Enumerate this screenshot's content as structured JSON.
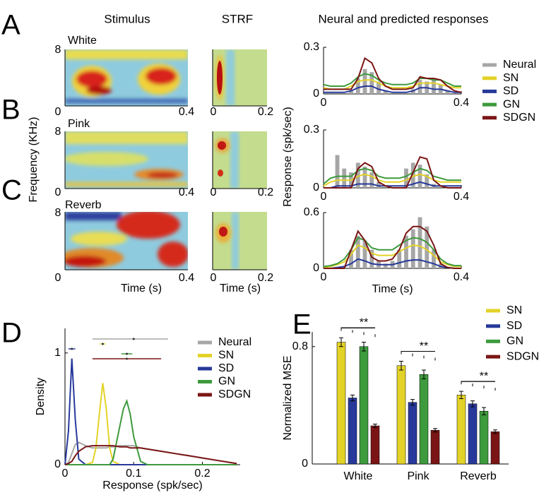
{
  "figure": {
    "panel_labels": [
      "A",
      "B",
      "C",
      "D",
      "E"
    ],
    "column_titles": [
      "Stimulus",
      "STRF",
      "Neural and predicted responses"
    ],
    "conditions": [
      "White",
      "Pink",
      "Reverb"
    ],
    "frequency_label": "Frequency (KHz)",
    "time_label": "Time (s)",
    "stimulus_yticks": [
      0,
      8
    ],
    "stimulus_xticks": [
      0,
      0.4
    ],
    "strf_xticks": [
      0,
      0.2
    ]
  },
  "chart_data": [
    {
      "type": "line",
      "xlim": [
        0,
        0.4
      ],
      "xticks": [
        0,
        0.4
      ],
      "ylim": [
        0,
        0.3
      ],
      "yticks": [
        0,
        0.3
      ],
      "legend": "right",
      "x": [
        0,
        0.02,
        0.04,
        0.06,
        0.08,
        0.1,
        0.12,
        0.14,
        0.16,
        0.18,
        0.2,
        0.22,
        0.24,
        0.26,
        0.28,
        0.3,
        0.32,
        0.34,
        0.36,
        0.38,
        0.4
      ],
      "series": [
        {
          "name": "Neural",
          "color": "#a6a6a6",
          "style": "bar",
          "values": [
            0,
            0,
            0,
            0,
            0.02,
            0.1,
            0.16,
            0.14,
            0.08,
            0.02,
            0,
            0,
            0,
            0.03,
            0.09,
            0.08,
            0.09,
            0.06,
            0.02,
            0,
            0
          ]
        },
        {
          "name": "SN",
          "color": "#e3d227",
          "values": [
            0.04,
            0.03,
            0.03,
            0.03,
            0.05,
            0.08,
            0.09,
            0.09,
            0.07,
            0.05,
            0.04,
            0.04,
            0.04,
            0.05,
            0.07,
            0.07,
            0.07,
            0.06,
            0.05,
            0.04,
            0.04
          ]
        },
        {
          "name": "SD",
          "color": "#27399a",
          "values": [
            0.01,
            0.01,
            0.01,
            0.01,
            0.02,
            0.04,
            0.05,
            0.05,
            0.03,
            0.02,
            0.01,
            0.01,
            0.01,
            0.02,
            0.04,
            0.04,
            0.03,
            0.03,
            0.02,
            0.01,
            0.01
          ]
        },
        {
          "name": "GN",
          "color": "#3d9a3d",
          "values": [
            0.06,
            0.05,
            0.05,
            0.05,
            0.07,
            0.11,
            0.13,
            0.12,
            0.09,
            0.07,
            0.06,
            0.06,
            0.06,
            0.07,
            0.1,
            0.1,
            0.09,
            0.09,
            0.07,
            0.05,
            0.05
          ]
        },
        {
          "name": "SDGN",
          "color": "#7b1515",
          "values": [
            0.03,
            0.03,
            0.03,
            0.03,
            0.03,
            0.1,
            0.23,
            0.2,
            0.1,
            0.05,
            0.03,
            0.03,
            0.03,
            0.04,
            0.11,
            0.1,
            0.1,
            0.09,
            0.05,
            0.02,
            0.01
          ]
        }
      ]
    },
    {
      "type": "line",
      "xlim": [
        0,
        0.4
      ],
      "xticks": [
        0,
        0.4
      ],
      "ylim": [
        0,
        0.3
      ],
      "yticks": [
        0,
        0.3
      ],
      "y_label": "Response (spk/sec)",
      "x": [
        0,
        0.02,
        0.04,
        0.06,
        0.08,
        0.1,
        0.12,
        0.14,
        0.16,
        0.18,
        0.2,
        0.22,
        0.24,
        0.26,
        0.28,
        0.3,
        0.32,
        0.34,
        0.36,
        0.38,
        0.4
      ],
      "series": [
        {
          "name": "Neural",
          "color": "#a6a6a6",
          "style": "bar",
          "values": [
            0,
            0,
            0.17,
            0.1,
            0.08,
            0.13,
            0.11,
            0.08,
            0.03,
            0,
            0,
            0,
            0.1,
            0.13,
            0.12,
            0.07,
            0.02,
            0,
            0,
            0,
            0
          ]
        },
        {
          "name": "SN",
          "color": "#e3d227",
          "values": [
            0.01,
            0.03,
            0.04,
            0.04,
            0.04,
            0.06,
            0.07,
            0.06,
            0.04,
            0.03,
            0.03,
            0.03,
            0.04,
            0.06,
            0.07,
            0.06,
            0.04,
            0.03,
            0.03,
            0.03,
            0.03
          ]
        },
        {
          "name": "SD",
          "color": "#27399a",
          "values": [
            0,
            0,
            0.01,
            0.01,
            0.01,
            0.02,
            0.02,
            0.02,
            0.01,
            0.01,
            0.01,
            0.01,
            0.01,
            0.02,
            0.03,
            0.02,
            0.01,
            0.01,
            0.01,
            0.01,
            0.01
          ]
        },
        {
          "name": "GN",
          "color": "#3d9a3d",
          "values": [
            0.02,
            0.05,
            0.06,
            0.06,
            0.06,
            0.09,
            0.1,
            0.09,
            0.06,
            0.05,
            0.05,
            0.05,
            0.06,
            0.08,
            0.1,
            0.09,
            0.06,
            0.05,
            0.04,
            0.04,
            0.04
          ]
        },
        {
          "name": "SDGN",
          "color": "#7b1515",
          "values": [
            0,
            0,
            0,
            0,
            0,
            0.1,
            0.13,
            0.11,
            0.03,
            0.01,
            0,
            0,
            0,
            0.08,
            0.16,
            0.15,
            0.04,
            0.01,
            0,
            0,
            0
          ]
        }
      ]
    },
    {
      "type": "line",
      "xlim": [
        0,
        0.4
      ],
      "xticks": [
        0,
        0.4
      ],
      "ylim": [
        0,
        0.6
      ],
      "yticks": [
        0,
        0.6
      ],
      "x_label": "Time (s)",
      "x": [
        0,
        0.02,
        0.04,
        0.06,
        0.08,
        0.1,
        0.12,
        0.14,
        0.16,
        0.18,
        0.2,
        0.22,
        0.24,
        0.26,
        0.28,
        0.3,
        0.32,
        0.34,
        0.36,
        0.38,
        0.4
      ],
      "series": [
        {
          "name": "Neural",
          "color": "#a6a6a6",
          "style": "bar",
          "values": [
            0,
            0,
            0,
            0.02,
            0.2,
            0.35,
            0.3,
            0.2,
            0.08,
            0.05,
            0.08,
            0.2,
            0.35,
            0.42,
            0.55,
            0.45,
            0.2,
            0.05,
            0,
            0,
            0
          ]
        },
        {
          "name": "SN",
          "color": "#e3d227",
          "values": [
            0.01,
            0.02,
            0.04,
            0.07,
            0.15,
            0.25,
            0.22,
            0.16,
            0.14,
            0.14,
            0.14,
            0.18,
            0.22,
            0.25,
            0.24,
            0.2,
            0.14,
            0.07,
            0.04,
            0.02,
            0.02
          ]
        },
        {
          "name": "SD",
          "color": "#27399a",
          "values": [
            0,
            0,
            0.01,
            0.02,
            0.05,
            0.1,
            0.08,
            0.05,
            0.04,
            0.04,
            0.04,
            0.06,
            0.08,
            0.09,
            0.09,
            0.07,
            0.05,
            0.02,
            0.01,
            0,
            0
          ]
        },
        {
          "name": "GN",
          "color": "#3d9a3d",
          "values": [
            0.02,
            0.03,
            0.05,
            0.1,
            0.2,
            0.33,
            0.3,
            0.22,
            0.2,
            0.2,
            0.2,
            0.25,
            0.3,
            0.33,
            0.32,
            0.28,
            0.2,
            0.1,
            0.05,
            0.03,
            0.03
          ]
        },
        {
          "name": "SDGN",
          "color": "#7b1515",
          "values": [
            0,
            0,
            0,
            0,
            0.2,
            0.4,
            0.3,
            0.12,
            0.08,
            0.08,
            0.1,
            0.2,
            0.38,
            0.45,
            0.45,
            0.4,
            0.25,
            0.05,
            0.01,
            0,
            0
          ]
        }
      ]
    },
    {
      "type": "line",
      "xlim": [
        0,
        0.255
      ],
      "xticks": [
        0,
        0.1,
        0.2
      ],
      "ylim": [
        0,
        1.22
      ],
      "yticks": [
        0,
        1
      ],
      "x_label": "Response (spk/sec)",
      "y_label": "Density",
      "legend": "upper right",
      "x": [
        0,
        0.005,
        0.01,
        0.015,
        0.02,
        0.03,
        0.04,
        0.045,
        0.05,
        0.055,
        0.06,
        0.065,
        0.07,
        0.08,
        0.085,
        0.09,
        0.095,
        0.1,
        0.11,
        0.12,
        0.14,
        0.16,
        0.18,
        0.2,
        0.22,
        0.25
      ],
      "series": [
        {
          "name": "Neural",
          "color": "#a6a6a6",
          "mean": 0.1,
          "range": [
            0.04,
            0.15
          ],
          "values": [
            0,
            0.02,
            0.1,
            0.18,
            0.2,
            0.17,
            0.15,
            0.15,
            0.15,
            0.15,
            0.15,
            0.16,
            0.16,
            0.17,
            0.17,
            0.17,
            0.17,
            0.17,
            0.15,
            0.14,
            0.12,
            0.1,
            0.08,
            0.06,
            0.04,
            0.01
          ]
        },
        {
          "name": "SN",
          "color": "#e3d227",
          "mean": 0.055,
          "range": [
            0.051,
            0.059
          ],
          "values": [
            0,
            0,
            0,
            0,
            0,
            0,
            0.02,
            0.15,
            0.45,
            0.73,
            0.5,
            0.15,
            0.03,
            0,
            0,
            0,
            0,
            0,
            0,
            0,
            0,
            0,
            0,
            0,
            0,
            0
          ]
        },
        {
          "name": "SD",
          "color": "#27399a",
          "mean": 0.01,
          "range": [
            0.005,
            0.015
          ],
          "values": [
            0,
            0.3,
            0.95,
            0.4,
            0.05,
            0,
            0,
            0,
            0,
            0,
            0,
            0,
            0,
            0,
            0,
            0,
            0,
            0,
            0,
            0,
            0,
            0,
            0,
            0,
            0,
            0
          ]
        },
        {
          "name": "GN",
          "color": "#3d9a3d",
          "mean": 0.09,
          "range": [
            0.082,
            0.098
          ],
          "values": [
            0,
            0,
            0,
            0,
            0,
            0,
            0,
            0,
            0,
            0,
            0,
            0,
            0.05,
            0.35,
            0.5,
            0.57,
            0.45,
            0.25,
            0.03,
            0,
            0,
            0,
            0,
            0,
            0,
            0
          ]
        },
        {
          "name": "SDGN",
          "color": "#7b1515",
          "mean": 0.09,
          "range": [
            0.04,
            0.14
          ],
          "values": [
            0,
            0.01,
            0.03,
            0.08,
            0.12,
            0.16,
            0.17,
            0.17,
            0.17,
            0.17,
            0.17,
            0.17,
            0.17,
            0.16,
            0.16,
            0.16,
            0.15,
            0.15,
            0.15,
            0.14,
            0.12,
            0.1,
            0.08,
            0.06,
            0.04,
            0.01
          ]
        }
      ]
    },
    {
      "type": "bar",
      "categories": [
        "White",
        "Pink",
        "Reverb"
      ],
      "ylim": [
        0,
        0.9
      ],
      "yticks": [
        0,
        0.8
      ],
      "y_label": "Normalized MSE",
      "legend": "upper right",
      "annotations": [
        "**",
        "**",
        "**"
      ],
      "series": [
        {
          "name": "SN",
          "color": "#e3d227",
          "values": [
            0.83,
            0.67,
            0.47
          ],
          "errors": [
            0.03,
            0.03,
            0.025
          ]
        },
        {
          "name": "SD",
          "color": "#27399a",
          "values": [
            0.45,
            0.42,
            0.41
          ],
          "errors": [
            0.02,
            0.02,
            0.02
          ]
        },
        {
          "name": "GN",
          "color": "#3d9a3d",
          "values": [
            0.8,
            0.61,
            0.36
          ],
          "errors": [
            0.03,
            0.03,
            0.025
          ]
        },
        {
          "name": "SDGN",
          "color": "#7b1515",
          "values": [
            0.26,
            0.23,
            0.22
          ],
          "errors": [
            0.012,
            0.012,
            0.012
          ]
        }
      ]
    }
  ]
}
